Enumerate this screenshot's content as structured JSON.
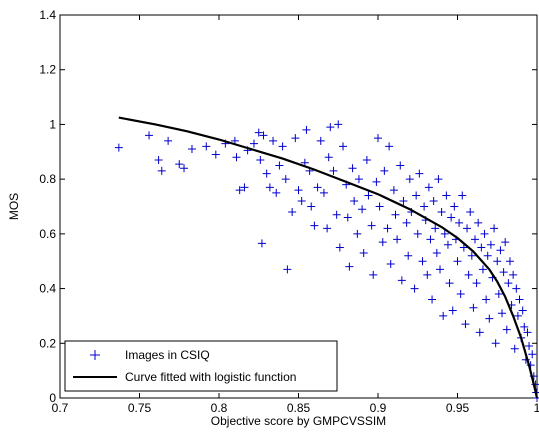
{
  "chart_data": {
    "type": "scatter",
    "title": "",
    "xlabel": "Objective score by GMPCVSSIM",
    "ylabel": "MOS",
    "xlim": [
      0.7,
      1.0
    ],
    "ylim": [
      0,
      1.4
    ],
    "x_ticks": [
      "0.7",
      "0.75",
      "0.8",
      "0.85",
      "0.9",
      "0.95",
      "1"
    ],
    "y_ticks": [
      "0",
      "0.2",
      "0.4",
      "0.6",
      "0.8",
      "1",
      "1.2",
      "1.4"
    ],
    "grid": false,
    "legend_position": "bottom-left",
    "colors": {
      "scatter": "#0000cc",
      "curve": "#000000",
      "axes": "#000000",
      "background": "#ffffff"
    },
    "series": [
      {
        "name": "Images in CSIQ",
        "kind": "scatter",
        "marker": "+",
        "points": [
          [
            0.737,
            0.915
          ],
          [
            0.756,
            0.96
          ],
          [
            0.762,
            0.87
          ],
          [
            0.764,
            0.83
          ],
          [
            0.768,
            0.94
          ],
          [
            0.775,
            0.855
          ],
          [
            0.778,
            0.84
          ],
          [
            0.783,
            0.91
          ],
          [
            0.792,
            0.92
          ],
          [
            0.798,
            0.89
          ],
          [
            0.804,
            0.93
          ],
          [
            0.81,
            0.94
          ],
          [
            0.811,
            0.88
          ],
          [
            0.813,
            0.76
          ],
          [
            0.816,
            0.77
          ],
          [
            0.818,
            0.905
          ],
          [
            0.822,
            0.93
          ],
          [
            0.825,
            0.97
          ],
          [
            0.826,
            0.87
          ],
          [
            0.827,
            0.565
          ],
          [
            0.828,
            0.96
          ],
          [
            0.83,
            0.82
          ],
          [
            0.832,
            0.77
          ],
          [
            0.834,
            0.94
          ],
          [
            0.836,
            0.75
          ],
          [
            0.838,
            0.85
          ],
          [
            0.84,
            0.92
          ],
          [
            0.842,
            0.8
          ],
          [
            0.843,
            0.47
          ],
          [
            0.846,
            0.68
          ],
          [
            0.848,
            0.95
          ],
          [
            0.85,
            0.76
          ],
          [
            0.852,
            0.72
          ],
          [
            0.854,
            0.86
          ],
          [
            0.855,
            0.98
          ],
          [
            0.857,
            0.83
          ],
          [
            0.858,
            0.7
          ],
          [
            0.86,
            0.63
          ],
          [
            0.862,
            0.77
          ],
          [
            0.864,
            0.94
          ],
          [
            0.866,
            0.75
          ],
          [
            0.868,
            0.62
          ],
          [
            0.869,
            0.88
          ],
          [
            0.87,
            0.99
          ],
          [
            0.872,
            0.83
          ],
          [
            0.874,
            0.67
          ],
          [
            0.875,
            1.0
          ],
          [
            0.876,
            0.55
          ],
          [
            0.878,
            0.92
          ],
          [
            0.88,
            0.78
          ],
          [
            0.881,
            0.66
          ],
          [
            0.882,
            0.48
          ],
          [
            0.884,
            0.84
          ],
          [
            0.885,
            0.72
          ],
          [
            0.887,
            0.6
          ],
          [
            0.888,
            0.8
          ],
          [
            0.89,
            0.69
          ],
          [
            0.891,
            0.53
          ],
          [
            0.893,
            0.87
          ],
          [
            0.894,
            0.74
          ],
          [
            0.896,
            0.63
          ],
          [
            0.897,
            0.45
          ],
          [
            0.899,
            0.79
          ],
          [
            0.9,
            0.95
          ],
          [
            0.901,
            0.7
          ],
          [
            0.903,
            0.57
          ],
          [
            0.904,
            0.83
          ],
          [
            0.906,
            0.62
          ],
          [
            0.907,
            0.92
          ],
          [
            0.908,
            0.49
          ],
          [
            0.91,
            0.76
          ],
          [
            0.911,
            0.67
          ],
          [
            0.912,
            0.58
          ],
          [
            0.914,
            0.85
          ],
          [
            0.915,
            0.43
          ],
          [
            0.916,
            0.72
          ],
          [
            0.918,
            0.64
          ],
          [
            0.919,
            0.52
          ],
          [
            0.92,
            0.8
          ],
          [
            0.921,
            0.68
          ],
          [
            0.923,
            0.4
          ],
          [
            0.924,
            0.74
          ],
          [
            0.925,
            0.6
          ],
          [
            0.926,
            0.82
          ],
          [
            0.928,
            0.5
          ],
          [
            0.929,
            0.7
          ],
          [
            0.93,
            0.65
          ],
          [
            0.931,
            0.45
          ],
          [
            0.932,
            0.77
          ],
          [
            0.933,
            0.58
          ],
          [
            0.934,
            0.36
          ],
          [
            0.935,
            0.72
          ],
          [
            0.936,
            0.62
          ],
          [
            0.937,
            0.53
          ],
          [
            0.938,
            0.8
          ],
          [
            0.939,
            0.47
          ],
          [
            0.94,
            0.68
          ],
          [
            0.941,
            0.3
          ],
          [
            0.942,
            0.6
          ],
          [
            0.943,
            0.74
          ],
          [
            0.944,
            0.56
          ],
          [
            0.945,
            0.42
          ],
          [
            0.946,
            0.66
          ],
          [
            0.947,
            0.32
          ],
          [
            0.948,
            0.7
          ],
          [
            0.949,
            0.58
          ],
          [
            0.95,
            0.5
          ],
          [
            0.951,
            0.64
          ],
          [
            0.952,
            0.38
          ],
          [
            0.953,
            0.74
          ],
          [
            0.954,
            0.55
          ],
          [
            0.955,
            0.27
          ],
          [
            0.956,
            0.62
          ],
          [
            0.957,
            0.45
          ],
          [
            0.958,
            0.68
          ],
          [
            0.959,
            0.52
          ],
          [
            0.96,
            0.33
          ],
          [
            0.961,
            0.58
          ],
          [
            0.962,
            0.42
          ],
          [
            0.963,
            0.64
          ],
          [
            0.964,
            0.24
          ],
          [
            0.965,
            0.55
          ],
          [
            0.966,
            0.47
          ],
          [
            0.967,
            0.6
          ],
          [
            0.968,
            0.36
          ],
          [
            0.969,
            0.52
          ],
          [
            0.97,
            0.29
          ],
          [
            0.971,
            0.56
          ],
          [
            0.972,
            0.44
          ],
          [
            0.973,
            0.62
          ],
          [
            0.974,
            0.2
          ],
          [
            0.975,
            0.5
          ],
          [
            0.976,
            0.38
          ],
          [
            0.977,
            0.54
          ],
          [
            0.978,
            0.31
          ],
          [
            0.979,
            0.46
          ],
          [
            0.98,
            0.57
          ],
          [
            0.981,
            0.25
          ],
          [
            0.982,
            0.42
          ],
          [
            0.983,
            0.5
          ],
          [
            0.984,
            0.34
          ],
          [
            0.985,
            0.45
          ],
          [
            0.986,
            0.18
          ],
          [
            0.987,
            0.4
          ],
          [
            0.988,
            0.3
          ],
          [
            0.989,
            0.36
          ],
          [
            0.99,
            0.22
          ],
          [
            0.991,
            0.32
          ],
          [
            0.992,
            0.26
          ],
          [
            0.993,
            0.14
          ],
          [
            0.994,
            0.24
          ],
          [
            0.995,
            0.19
          ],
          [
            0.996,
            0.12
          ],
          [
            0.997,
            0.16
          ],
          [
            0.998,
            0.08
          ],
          [
            0.999,
            0.05
          ],
          [
            0.9995,
            0.02
          ],
          [
            1.0,
            0.0
          ]
        ]
      },
      {
        "name": "Curve fitted with logistic function",
        "kind": "line",
        "points": [
          [
            0.737,
            1.025
          ],
          [
            0.76,
            1.0
          ],
          [
            0.78,
            0.975
          ],
          [
            0.8,
            0.945
          ],
          [
            0.82,
            0.91
          ],
          [
            0.84,
            0.875
          ],
          [
            0.86,
            0.835
          ],
          [
            0.88,
            0.79
          ],
          [
            0.9,
            0.745
          ],
          [
            0.92,
            0.69
          ],
          [
            0.94,
            0.625
          ],
          [
            0.95,
            0.585
          ],
          [
            0.96,
            0.535
          ],
          [
            0.97,
            0.47
          ],
          [
            0.975,
            0.425
          ],
          [
            0.98,
            0.37
          ],
          [
            0.985,
            0.3
          ],
          [
            0.99,
            0.22
          ],
          [
            0.995,
            0.12
          ],
          [
            0.998,
            0.05
          ],
          [
            1.0,
            0.0
          ]
        ]
      }
    ]
  }
}
